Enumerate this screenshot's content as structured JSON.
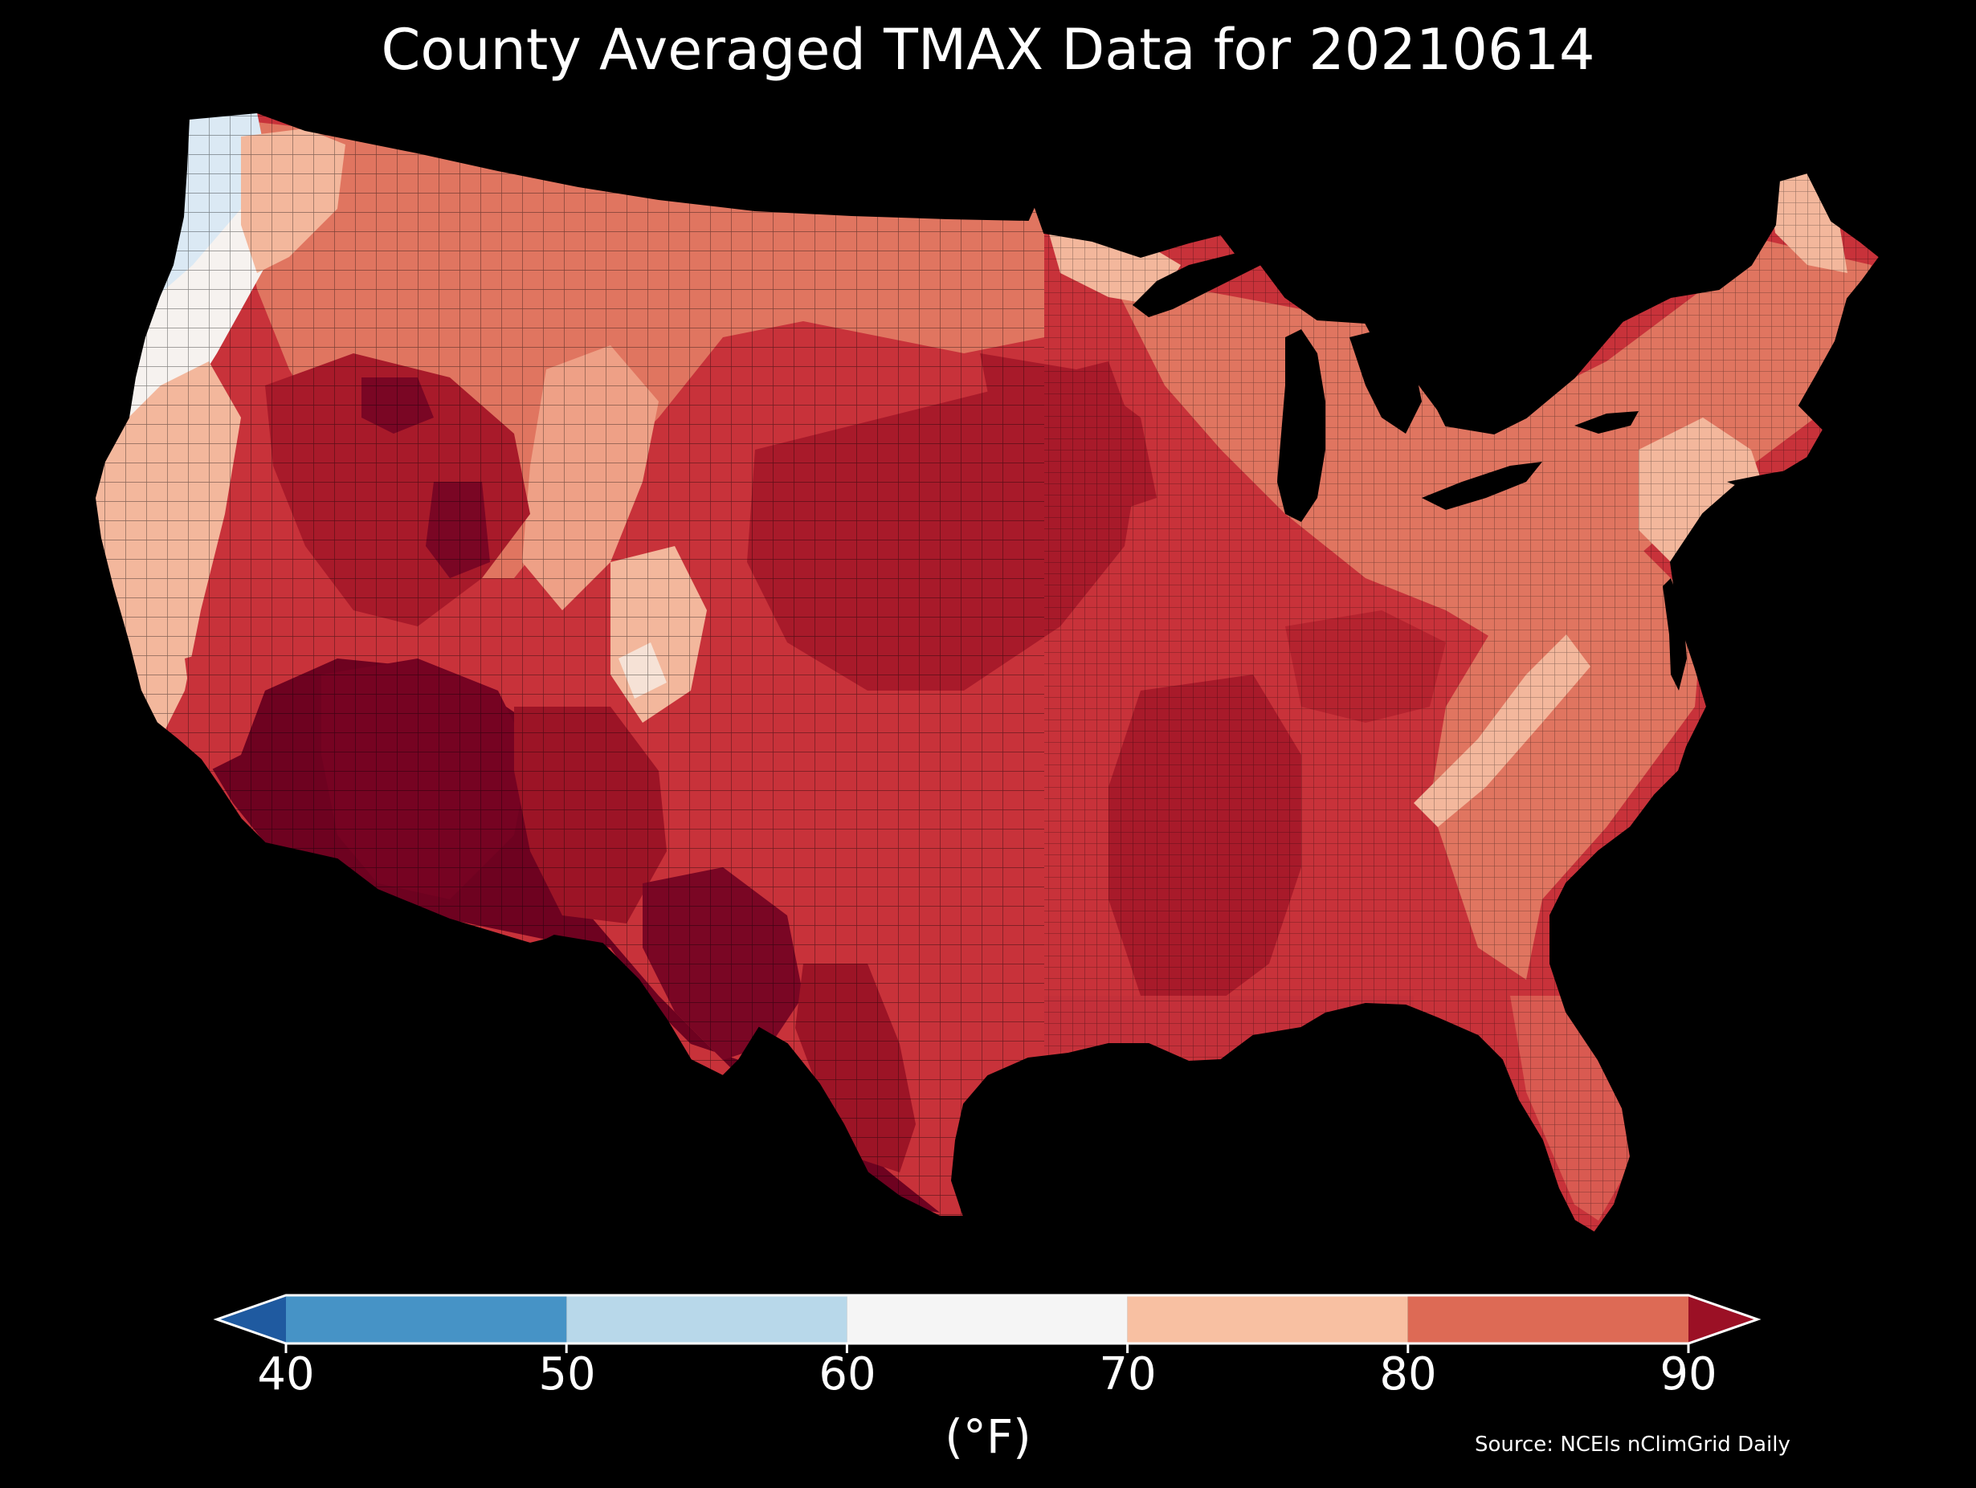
{
  "title": "County Averaged TMAX Data for 20210614",
  "colorbar": {
    "unit_label": "(°F)",
    "ticks": [
      "40",
      "50",
      "60",
      "70",
      "80",
      "90"
    ],
    "bins": [
      {
        "name": "below-40",
        "range": [
          null,
          40
        ],
        "color": "#1f5aa0"
      },
      {
        "name": "40-50",
        "range": [
          40,
          50
        ],
        "color": "#4693c6"
      },
      {
        "name": "50-60",
        "range": [
          50,
          60
        ],
        "color": "#b8d8ea"
      },
      {
        "name": "60-70",
        "range": [
          60,
          70
        ],
        "color": "#f5f5f5"
      },
      {
        "name": "70-80",
        "range": [
          70,
          80
        ],
        "color": "#f8c0a2"
      },
      {
        "name": "80-90",
        "range": [
          80,
          90
        ],
        "color": "#dd6a55"
      },
      {
        "name": "above-90",
        "range": [
          90,
          null
        ],
        "color": "#9b1025"
      }
    ]
  },
  "source": "Source: NCEIs nClimGrid Daily",
  "map": {
    "region": "contiguous United States",
    "palette": {
      "background": "#000000",
      "lakes": "#000000",
      "cold": "#dbe9f4",
      "cool": "#f6f2ef",
      "mild": "#f3b79c",
      "warm": "#e07560",
      "hot": "#c8323a",
      "very_hot": "#a81a2a",
      "extreme": "#6e0220"
    }
  }
}
